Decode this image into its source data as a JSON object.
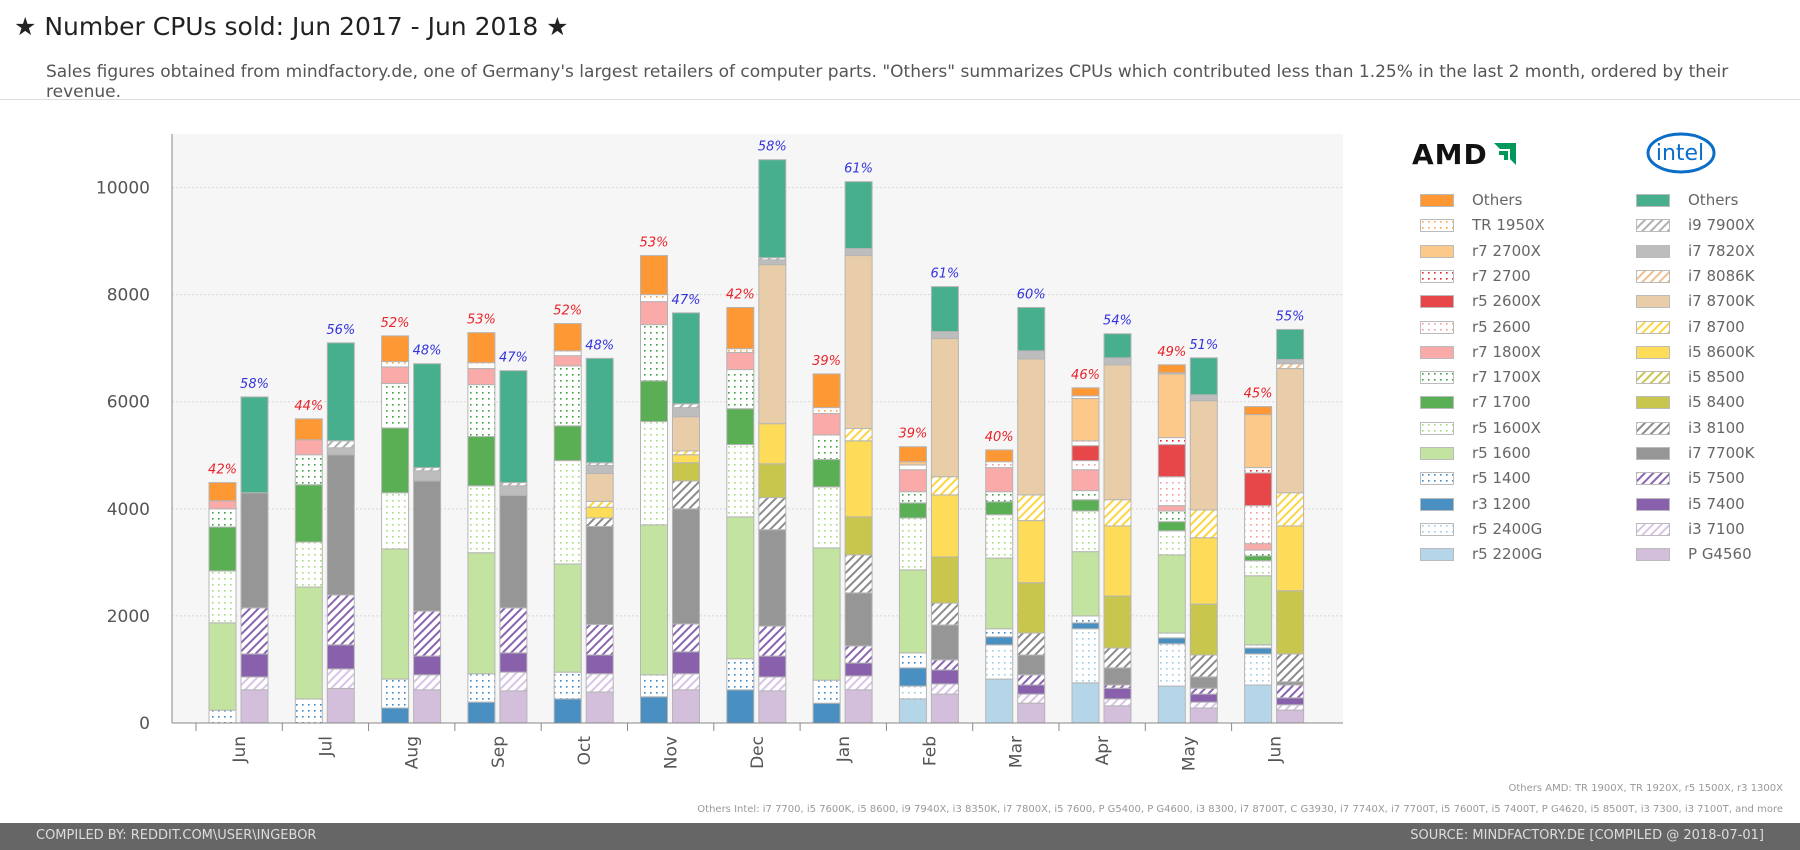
{
  "title": "★ Number CPUs sold: Jun 2017 - Jun 2018 ★",
  "subtitle": "Sales figures obtained from mindfactory.de, one of Germany's largest retailers of computer parts. \"Others\" summarizes CPUs which contributed less than 1.25% in the last 2 month, ordered by their revenue.",
  "legend": {
    "amd_logo": "AMD",
    "intel_logo": "intel"
  },
  "notes": {
    "others_amd": "Others AMD: TR 1900X, TR 1920X, r5 1500X, r3 1300X",
    "others_intel": "Others Intel: i7 7700, i5 7600K, i5 8600, i9 7940X, i3 8350K, i7 7800X, i5 7600, P G5400, P G4600, i3 8300, i7 8700T, C G3930, i7 7740X, i7 7700T, i5 7600T, i5 7400T, P G4620, i5 8500T, i3 7300, i3 7100T, and more"
  },
  "footer": {
    "left": "COMPILED BY: REDDIT.COM\\USER\\INGEBOR",
    "right": "SOURCE: MINDFACTORY.DE [COMPILED @ 2018-07-01]"
  },
  "chart_data": {
    "type": "bar",
    "stacked": true,
    "categories": [
      "Jun",
      "Jul",
      "Aug",
      "Sep",
      "Oct",
      "Nov",
      "Dec",
      "Jan",
      "Feb",
      "Mar",
      "Apr",
      "May",
      "Jun"
    ],
    "ylim": [
      0,
      11000
    ],
    "yticks": [
      0,
      2000,
      4000,
      6000,
      8000,
      10000
    ],
    "grid": true,
    "legend_position": "right",
    "amd_percent_labels": [
      "42%",
      "44%",
      "52%",
      "53%",
      "52%",
      "53%",
      "42%",
      "39%",
      "39%",
      "40%",
      "46%",
      "49%",
      "45%"
    ],
    "intel_percent_labels": [
      "58%",
      "56%",
      "48%",
      "47%",
      "48%",
      "47%",
      "58%",
      "61%",
      "61%",
      "60%",
      "54%",
      "51%",
      "55%"
    ],
    "amd_label_color": "#e8242a",
    "intel_label_color": "#3333dd",
    "amd_series": [
      {
        "name": "r5 2200G",
        "color": "#b5d6e8",
        "fill": "solid",
        "values": [
          0,
          0,
          0,
          0,
          0,
          0,
          0,
          0,
          450,
          820,
          750,
          690,
          710
        ]
      },
      {
        "name": "r5 2400G",
        "color": "#9ecae1",
        "fill": "dots",
        "values": [
          0,
          0,
          0,
          0,
          0,
          0,
          0,
          0,
          240,
          640,
          1010,
          790,
          580
        ]
      },
      {
        "name": "r3 1200",
        "color": "#4a8fc1",
        "fill": "solid",
        "values": [
          0,
          0,
          280,
          390,
          450,
          490,
          620,
          370,
          340,
          150,
          110,
          110,
          110
        ]
      },
      {
        "name": "r5 1400",
        "color": "#3a87c8",
        "fill": "dots",
        "values": [
          240,
          450,
          540,
          530,
          500,
          410,
          580,
          430,
          280,
          150,
          130,
          90,
          60
        ]
      },
      {
        "name": "r5 1600",
        "color": "#c2e4a0",
        "fill": "solid",
        "values": [
          1630,
          2090,
          2430,
          2260,
          2020,
          2800,
          2650,
          2470,
          1550,
          1320,
          1200,
          1460,
          1290
        ]
      },
      {
        "name": "r5 1600X",
        "color": "#a6da80",
        "fill": "dots",
        "values": [
          970,
          840,
          1050,
          1250,
          1930,
          1930,
          1350,
          1140,
          970,
          810,
          760,
          450,
          280
        ]
      },
      {
        "name": "r7 1700",
        "color": "#5aaf55",
        "fill": "solid",
        "values": [
          820,
          1070,
          1210,
          920,
          650,
          760,
          670,
          510,
          280,
          240,
          210,
          170,
          90
        ]
      },
      {
        "name": "r7 1700X",
        "color": "#3f9f3f",
        "fill": "dots",
        "values": [
          340,
          560,
          830,
          970,
          1120,
          1050,
          730,
          460,
          210,
          190,
          170,
          200,
          110
        ]
      },
      {
        "name": "r7 1800X",
        "color": "#f9aaa9",
        "fill": "solid",
        "values": [
          150,
          280,
          310,
          300,
          190,
          430,
          320,
          400,
          410,
          450,
          390,
          100,
          120
        ]
      },
      {
        "name": "r5 2600",
        "color": "#f49a9a",
        "fill": "dots",
        "values": [
          0,
          0,
          0,
          0,
          0,
          0,
          0,
          0,
          90,
          110,
          170,
          540,
          710
        ]
      },
      {
        "name": "r5 2600X",
        "color": "#e8474a",
        "fill": "solid",
        "values": [
          0,
          0,
          0,
          0,
          0,
          0,
          0,
          0,
          0,
          0,
          280,
          600,
          610
        ]
      },
      {
        "name": "r7 2700",
        "color": "#e0242a",
        "fill": "dots",
        "values": [
          0,
          0,
          0,
          0,
          0,
          0,
          0,
          0,
          0,
          0,
          90,
          130,
          100
        ]
      },
      {
        "name": "r7 2700X",
        "color": "#fcc98a",
        "fill": "solid",
        "values": [
          0,
          0,
          0,
          0,
          0,
          0,
          0,
          0,
          60,
          0,
          790,
          1190,
          990
        ]
      },
      {
        "name": "TR 1950X",
        "color": "#fca040",
        "fill": "dots",
        "values": [
          0,
          0,
          100,
          110,
          90,
          130,
          70,
          110,
          0,
          0,
          50,
          20,
          0
        ]
      },
      {
        "name": "Others",
        "color": "#fd9835",
        "fill": "solid",
        "values": [
          340,
          390,
          480,
          560,
          510,
          730,
          770,
          630,
          280,
          220,
          150,
          150,
          150
        ]
      }
    ],
    "intel_series": [
      {
        "name": "P G4560",
        "color": "#d3bedc",
        "fill": "solid",
        "values": [
          620,
          645,
          620,
          600,
          580,
          620,
          600,
          620,
          540,
          370,
          320,
          280,
          240
        ]
      },
      {
        "name": "i3 7100",
        "color": "#d8c4e6",
        "fill": "hatch",
        "values": [
          240,
          365,
          280,
          350,
          340,
          300,
          260,
          260,
          190,
          170,
          130,
          110,
          100
        ]
      },
      {
        "name": "i5 7400",
        "color": "#8860ac",
        "fill": "solid",
        "values": [
          430,
          450,
          350,
          360,
          350,
          410,
          390,
          240,
          260,
          170,
          200,
          150,
          130
        ]
      },
      {
        "name": "i5 7500",
        "color": "#8a64b0",
        "fill": "hatch",
        "values": [
          860,
          930,
          840,
          840,
          570,
          520,
          560,
          320,
          190,
          190,
          60,
          110,
          240
        ]
      },
      {
        "name": "i7 7700K",
        "color": "#969696",
        "fill": "solid",
        "values": [
          2150,
          2620,
          2430,
          2100,
          1830,
          2150,
          1800,
          990,
          650,
          370,
          320,
          210,
          60
        ]
      },
      {
        "name": "i3 8100",
        "color": "#8c8c8c",
        "fill": "hatch",
        "values": [
          0,
          0,
          0,
          0,
          160,
          520,
          600,
          710,
          410,
          410,
          370,
          410,
          520
        ]
      },
      {
        "name": "i5 8400",
        "color": "#c9c64d",
        "fill": "solid",
        "values": [
          0,
          0,
          0,
          0,
          0,
          340,
          630,
          710,
          860,
          940,
          970,
          950,
          1180
        ]
      },
      {
        "name": "i5 8500",
        "color": "#c9c64d",
        "fill": "hatch",
        "values": [
          0,
          0,
          0,
          0,
          0,
          0,
          0,
          0,
          0,
          0,
          0,
          0,
          0
        ]
      },
      {
        "name": "i5 8600K",
        "color": "#fddc5a",
        "fill": "solid",
        "values": [
          0,
          0,
          0,
          0,
          200,
          150,
          750,
          1420,
          1160,
          1160,
          1310,
          1240,
          1210
        ]
      },
      {
        "name": "i7 8700",
        "color": "#fdd540",
        "fill": "hatch",
        "values": [
          0,
          0,
          0,
          0,
          110,
          70,
          0,
          230,
          340,
          480,
          490,
          520,
          620
        ]
      },
      {
        "name": "i7 8700K",
        "color": "#e8cda8",
        "fill": "solid",
        "values": [
          0,
          0,
          0,
          0,
          520,
          640,
          2970,
          3230,
          2580,
          2540,
          2520,
          2040,
          2320
        ]
      },
      {
        "name": "i7 8086K",
        "color": "#ecc090",
        "fill": "hatch",
        "values": [
          0,
          0,
          0,
          0,
          0,
          0,
          0,
          0,
          0,
          0,
          0,
          0,
          90
        ]
      },
      {
        "name": "i7 7820X",
        "color": "#bdbdbd",
        "fill": "solid",
        "values": [
          0,
          130,
          190,
          180,
          150,
          170,
          90,
          130,
          130,
          150,
          130,
          110,
          80
        ]
      },
      {
        "name": "i9 7900X",
        "color": "#b0b0b0",
        "fill": "hatch",
        "values": [
          0,
          130,
          60,
          60,
          50,
          70,
          40,
          0,
          0,
          0,
          0,
          0,
          0
        ]
      },
      {
        "name": "Others",
        "color": "#47af8e",
        "fill": "solid",
        "values": [
          1790,
          1830,
          1940,
          2090,
          1950,
          1700,
          1830,
          1250,
          840,
          810,
          450,
          690,
          560
        ]
      }
    ]
  }
}
